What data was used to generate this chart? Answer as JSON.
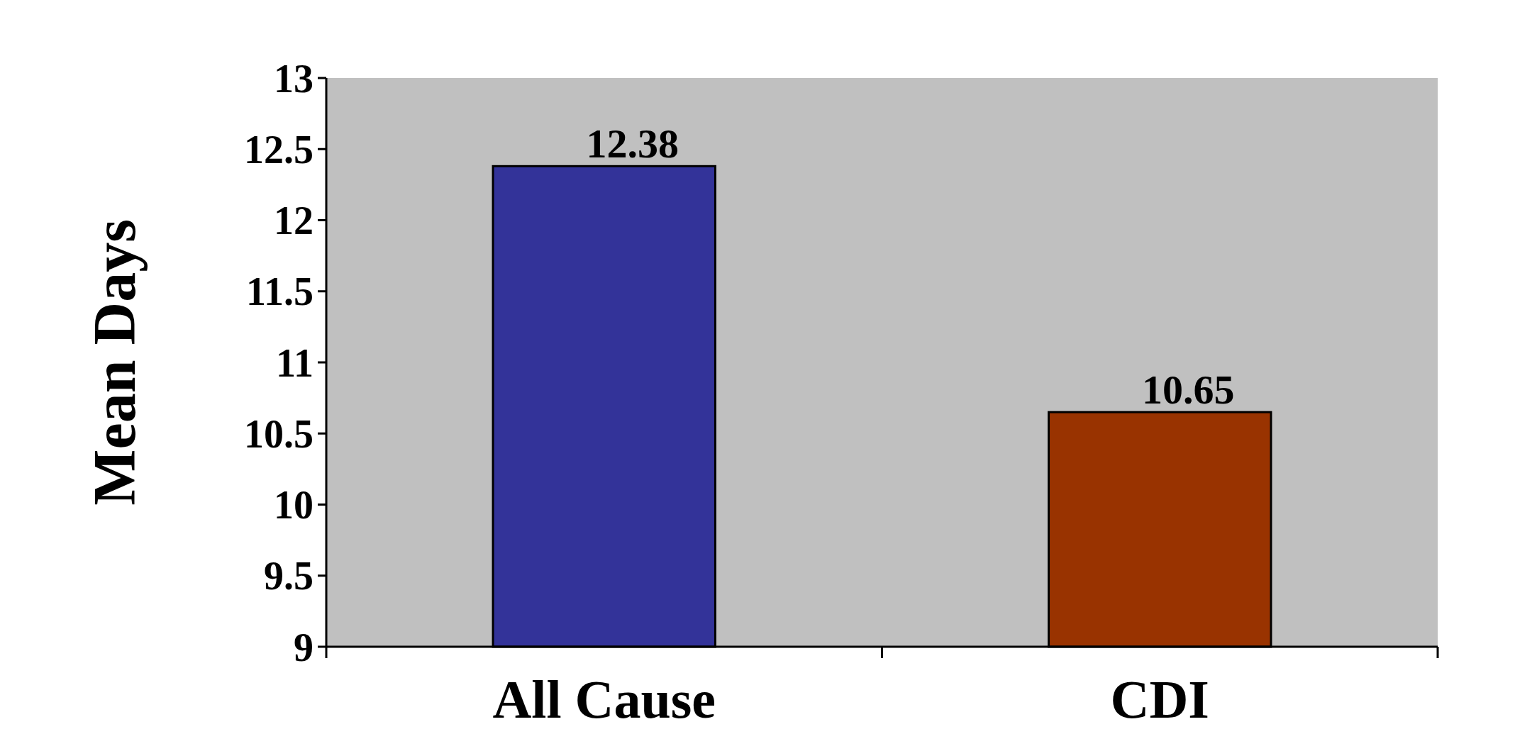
{
  "chart_data": {
    "type": "bar",
    "ylabel": "Mean Days",
    "categories": [
      "All Cause",
      "CDI"
    ],
    "values": [
      12.38,
      10.65
    ],
    "colors": [
      "#333399",
      "#993300"
    ],
    "ylim": [
      9,
      13
    ],
    "yticks": [
      9,
      9.5,
      10,
      10.5,
      11,
      11.5,
      12,
      12.5,
      13
    ],
    "data_labels": true
  }
}
